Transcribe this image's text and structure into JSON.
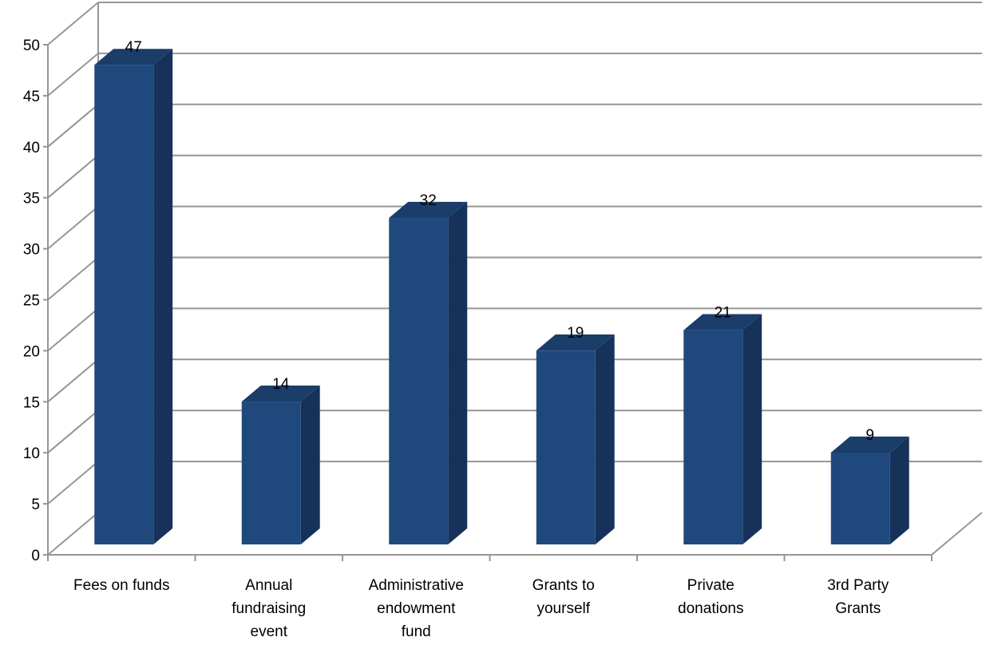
{
  "chart_data": {
    "type": "bar",
    "style": "3d-column",
    "categories": [
      [
        "Fees on funds"
      ],
      [
        "Annual",
        "fundraising",
        "event"
      ],
      [
        "Administrative",
        "endowment",
        "fund"
      ],
      [
        "Grants to",
        "yourself"
      ],
      [
        "Private",
        "donations"
      ],
      [
        "3rd Party",
        "Grants"
      ]
    ],
    "values": [
      47,
      14,
      32,
      19,
      21,
      9
    ],
    "data_labels": [
      "47",
      "14",
      "32",
      "19",
      "21",
      "9"
    ],
    "ylim": [
      0,
      50
    ],
    "y_ticks": [
      0,
      5,
      10,
      15,
      20,
      25,
      30,
      35,
      40,
      45,
      50
    ],
    "grid": true,
    "legend": "none",
    "title": "",
    "xlabel": "",
    "ylabel": "",
    "colors": {
      "bar_front": "#1F497D",
      "bar_top": "#1A3D6A",
      "bar_side": "#16325A",
      "grid": "#969696"
    }
  }
}
